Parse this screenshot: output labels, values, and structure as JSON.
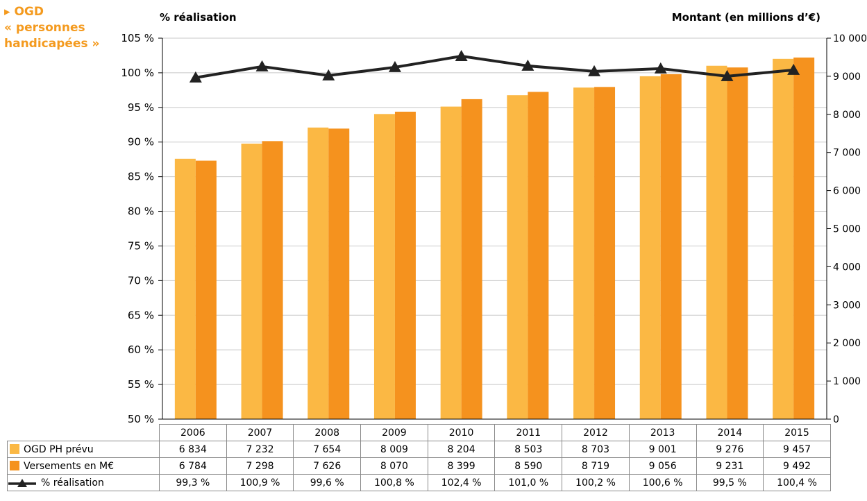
{
  "header": {
    "side_title_line1": "▸ OGD",
    "side_title_line2": "« personnes",
    "side_title_line3": "handicapées »",
    "left_axis_title": "% réalisation",
    "right_axis_title": "Montant (en millions d’€)"
  },
  "colors": {
    "prevu": "#fbb844",
    "versements": "#f5921e",
    "line": "#222222",
    "title_accent": "#f49a1e"
  },
  "chart_data": {
    "type": "bar",
    "categories": [
      "2006",
      "2007",
      "2008",
      "2009",
      "2010",
      "2011",
      "2012",
      "2013",
      "2014",
      "2015"
    ],
    "series": [
      {
        "name": "OGD PH prévu",
        "type": "bar",
        "axis": "right",
        "values": [
          6834,
          7232,
          7654,
          8009,
          8204,
          8503,
          8703,
          9001,
          9276,
          9457
        ],
        "labels": [
          "6 834",
          "7 232",
          "7 654",
          "8 009",
          "8 204",
          "8 503",
          "8 703",
          "9 001",
          "9 276",
          "9 457"
        ]
      },
      {
        "name": "Versements en M€",
        "type": "bar",
        "axis": "right",
        "values": [
          6784,
          7298,
          7626,
          8070,
          8399,
          8590,
          8719,
          9056,
          9231,
          9492
        ],
        "labels": [
          "6 784",
          "7 298",
          "7 626",
          "8 070",
          "8 399",
          "8 590",
          "8 719",
          "9 056",
          "9 231",
          "9 492"
        ]
      },
      {
        "name": "% réalisation",
        "type": "line",
        "axis": "left",
        "marker": "triangle",
        "values": [
          99.3,
          100.9,
          99.6,
          100.8,
          102.4,
          101.0,
          100.2,
          100.6,
          99.5,
          100.4
        ],
        "labels": [
          "99,3 %",
          "100,9 %",
          "99,6 %",
          "100,8 %",
          "102,4 %",
          "101,0 %",
          "100,2 %",
          "100,6 %",
          "99,5 %",
          "100,4 %"
        ]
      }
    ],
    "left_axis": {
      "title": "% réalisation",
      "ylim": [
        50,
        105
      ],
      "ticks": [
        50,
        55,
        60,
        65,
        70,
        75,
        80,
        85,
        90,
        95,
        100,
        105
      ],
      "tick_labels": [
        "50 %",
        "55 %",
        "60 %",
        "65 %",
        "70 %",
        "75 %",
        "80 %",
        "85 %",
        "90 %",
        "95 %",
        "100 %",
        "105 %"
      ]
    },
    "right_axis": {
      "title": "Montant (en millions d’€)",
      "ylim": [
        0,
        10000
      ],
      "ticks": [
        0,
        1000,
        2000,
        3000,
        4000,
        5000,
        6000,
        7000,
        8000,
        9000,
        10000
      ],
      "tick_labels": [
        "0",
        "1 000",
        "2 000",
        "3 000",
        "4 000",
        "5 000",
        "6 000",
        "7 000",
        "8 000",
        "9 000",
        "10 000"
      ]
    },
    "grid": true,
    "legend": "data-table-below"
  }
}
